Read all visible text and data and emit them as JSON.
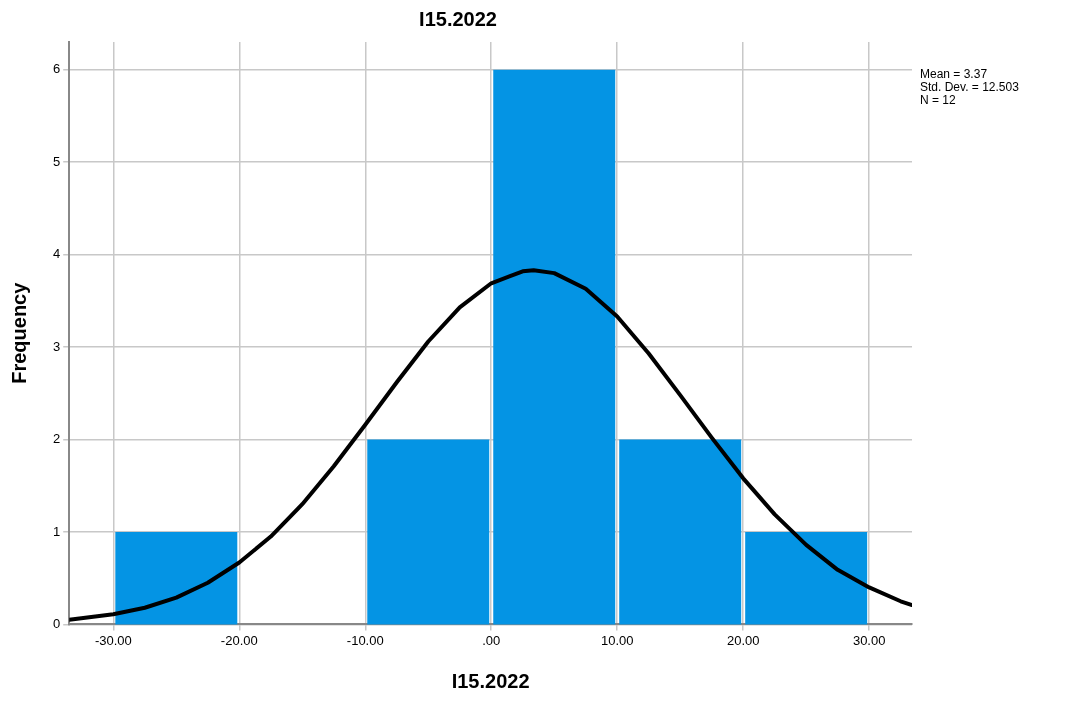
{
  "chart_data": {
    "type": "histogram",
    "title": "I15.2022",
    "xlabel": "I15.2022",
    "ylabel": "Frequency",
    "bins": [
      -30,
      -20,
      -10,
      0,
      10,
      20,
      30
    ],
    "values": [
      1,
      0,
      2,
      6,
      2,
      1
    ],
    "color": "#0494e4",
    "series": [
      {
        "type": "line",
        "color": "#000000",
        "x": [
          -33.5,
          -30,
          -27.5,
          -25,
          -22.5,
          -20,
          -17.5,
          -15,
          -12.5,
          -10,
          -7.5,
          -5,
          -2.5,
          0,
          2.5,
          3.37,
          5,
          7.5,
          10,
          12.5,
          15,
          17.5,
          20,
          22.5,
          25,
          27.5,
          30,
          32.5,
          33.4
        ],
        "values": [
          0.05,
          0.11,
          0.18,
          0.29,
          0.45,
          0.67,
          0.95,
          1.3,
          1.71,
          2.16,
          2.62,
          3.06,
          3.43,
          3.69,
          3.82,
          3.83,
          3.8,
          3.63,
          3.33,
          2.93,
          2.48,
          2.02,
          1.58,
          1.19,
          0.86,
          0.59,
          0.4,
          0.25,
          0.21
        ]
      }
    ],
    "xlim": [
      -33.5,
      33.4
    ],
    "ylim": [
      0,
      6.3
    ],
    "xticks": [
      {
        "value": -30,
        "label": "-30.00"
      },
      {
        "value": -20,
        "label": "-20.00"
      },
      {
        "value": -10,
        "label": "-10.00"
      },
      {
        "value": 0,
        "label": ".00"
      },
      {
        "value": 10,
        "label": "10.00"
      },
      {
        "value": 20,
        "label": "20.00"
      },
      {
        "value": 30,
        "label": "30.00"
      }
    ],
    "yticks": [
      0,
      1,
      2,
      3,
      4,
      5,
      6
    ],
    "annotations": [
      "Mean = 3.37",
      "Std. Dev. = 12.503",
      "N = 12"
    ],
    "grid": true,
    "legend": false,
    "marker": "none",
    "line_style": "solid"
  }
}
